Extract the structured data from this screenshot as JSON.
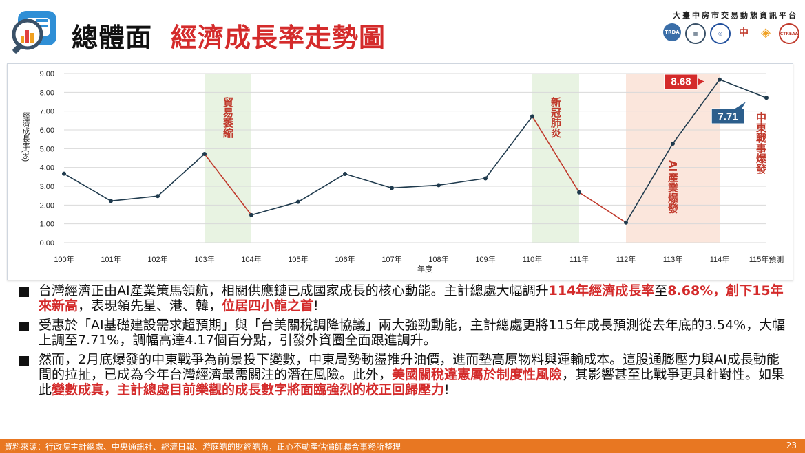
{
  "header": {
    "title_main": "總體面",
    "title_sub": "經濟成長率走勢圖",
    "platform": "大臺中房市交易動態資訊平台",
    "agency_icons": [
      "trda-logo-icon",
      "building-logo-icon",
      "seal-logo-icon",
      "chinese-logo-icon",
      "diamond-logo-icon",
      "ctreaa-logo-icon"
    ],
    "agency_labels": [
      "TRDA",
      "",
      "",
      "",
      "",
      "CTREAA"
    ]
  },
  "colors": {
    "line_default": "#1f3a4d",
    "line_decline": "#c0392b",
    "band_green": "#e8f3e2",
    "band_orange": "#fbe6dc",
    "callout_red": "#d42b2b",
    "callout_blue": "#2c5e8c",
    "accent_orange": "#e87722"
  },
  "chart_data": {
    "type": "line",
    "xlabel": "年度",
    "ylabel": "經濟成長率(%)",
    "categories": [
      "100年",
      "101年",
      "102年",
      "103年",
      "104年",
      "105年",
      "106年",
      "107年",
      "108年",
      "109年",
      "110年",
      "111年",
      "112年",
      "113年",
      "114年",
      "115年預測"
    ],
    "values": [
      3.67,
      2.22,
      2.48,
      4.72,
      1.47,
      2.17,
      3.66,
      2.91,
      3.06,
      3.42,
      6.72,
      2.68,
      1.07,
      5.27,
      8.68,
      7.71
    ],
    "decline_segments": [
      [
        3,
        4
      ],
      [
        10,
        11
      ],
      [
        11,
        12
      ]
    ],
    "ylim": [
      0,
      9
    ],
    "yticks": [
      "0.00",
      "1.00",
      "2.00",
      "3.00",
      "4.00",
      "5.00",
      "6.00",
      "7.00",
      "8.00",
      "9.00"
    ],
    "grid": true,
    "bands": [
      {
        "from": 3,
        "to": 4,
        "label": "貿易萎縮",
        "color": "green"
      },
      {
        "from": 10,
        "to": 11,
        "label": "新冠肺炎",
        "color": "green"
      },
      {
        "from": 12,
        "to": 14,
        "label": "AI產業爆發",
        "color": "orange"
      }
    ],
    "callouts": [
      {
        "index": 14,
        "text": "8.68",
        "color": "red"
      },
      {
        "index": 15,
        "text": "7.71",
        "color": "blue"
      }
    ],
    "side_annotation": "中東戰事爆發"
  },
  "bullets": [
    {
      "parts": [
        {
          "t": "台灣經濟正由AI產業策馬領航，相關供應鏈已成國家成長的核心動能。主計總處大幅調升",
          "h": false
        },
        {
          "t": "114年經濟成長率",
          "h": true
        },
        {
          "t": "至",
          "h": false
        },
        {
          "t": "8.68%，創下15年來新高",
          "h": true
        },
        {
          "t": "，表現領先星、港、韓，",
          "h": false
        },
        {
          "t": "位居四小龍之首",
          "h": true
        },
        {
          "t": "!",
          "h": false
        }
      ]
    },
    {
      "parts": [
        {
          "t": "受惠於「AI基礎建設需求超預期」與「台美關稅調降協議」兩大強勁動能，主計總處更將115年成長預測從去年底的3.54%，大幅上調至7.71%，調幅高達4.17個百分點，引發外資圈全面跟進調升。",
          "h": false
        }
      ]
    },
    {
      "parts": [
        {
          "t": "然而，2月底爆發的中東戰爭為前景投下變數，中東局勢動盪推升油價，進而墊高原物料與運輸成本。這股通膨壓力與AI成長動能間的拉扯，已成為今年台灣經濟最需關注的潛在風險。此外，",
          "h": false
        },
        {
          "t": "美國關稅違憲屬於制度性風險",
          "h": true
        },
        {
          "t": "，其影響甚至比戰爭更具針對性。如果此",
          "h": false
        },
        {
          "t": "變數成真，主計總處目前樂觀的成長數字將面臨強烈的校正回歸壓力",
          "h": true
        },
        {
          "t": "!",
          "h": false
        }
      ]
    }
  ],
  "footer": {
    "source": "資料來源：行政院主計總處、中央通訊社、經濟日報、游庭皓的財經皓角，正心不動產估價師聯合事務所整理",
    "page": "23"
  }
}
